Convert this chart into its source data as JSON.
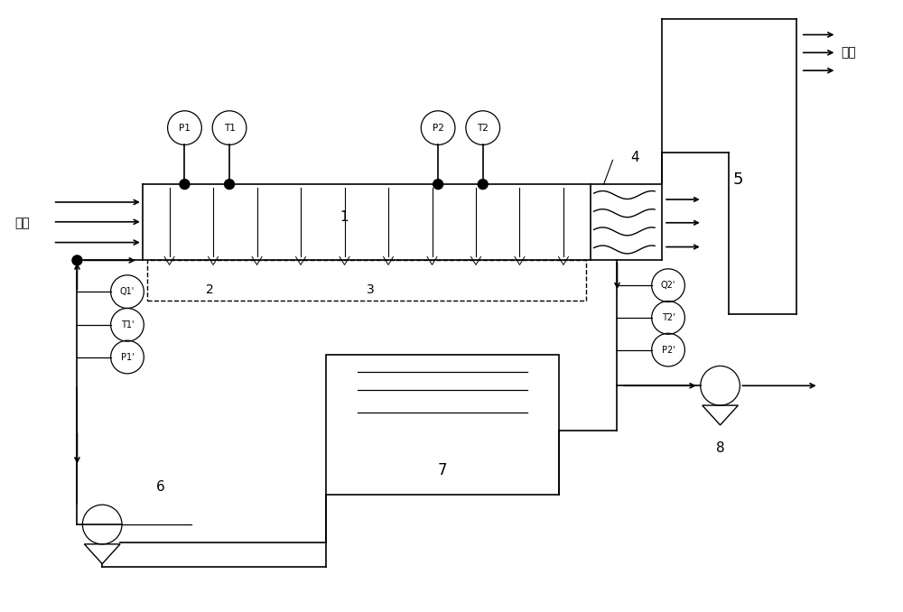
{
  "bg_color": "#ffffff",
  "line_color": "#000000",
  "fig_width": 10.0,
  "fig_height": 6.78,
  "labels": {
    "yanqi_in": "烟气",
    "yanqi_out": "烟气",
    "label1": "1",
    "label2": "2",
    "label3": "3",
    "label4": "4",
    "label5": "5",
    "label6": "6",
    "label7": "7",
    "label8": "8",
    "P1": "P1",
    "T1": "T1",
    "P2": "P2",
    "T2": "T2",
    "Q1p": "Q1'",
    "T1p": "T1'",
    "P1p": "P1'",
    "Q2p": "Q2'",
    "T2p": "T2'",
    "P2p": "P2'"
  }
}
